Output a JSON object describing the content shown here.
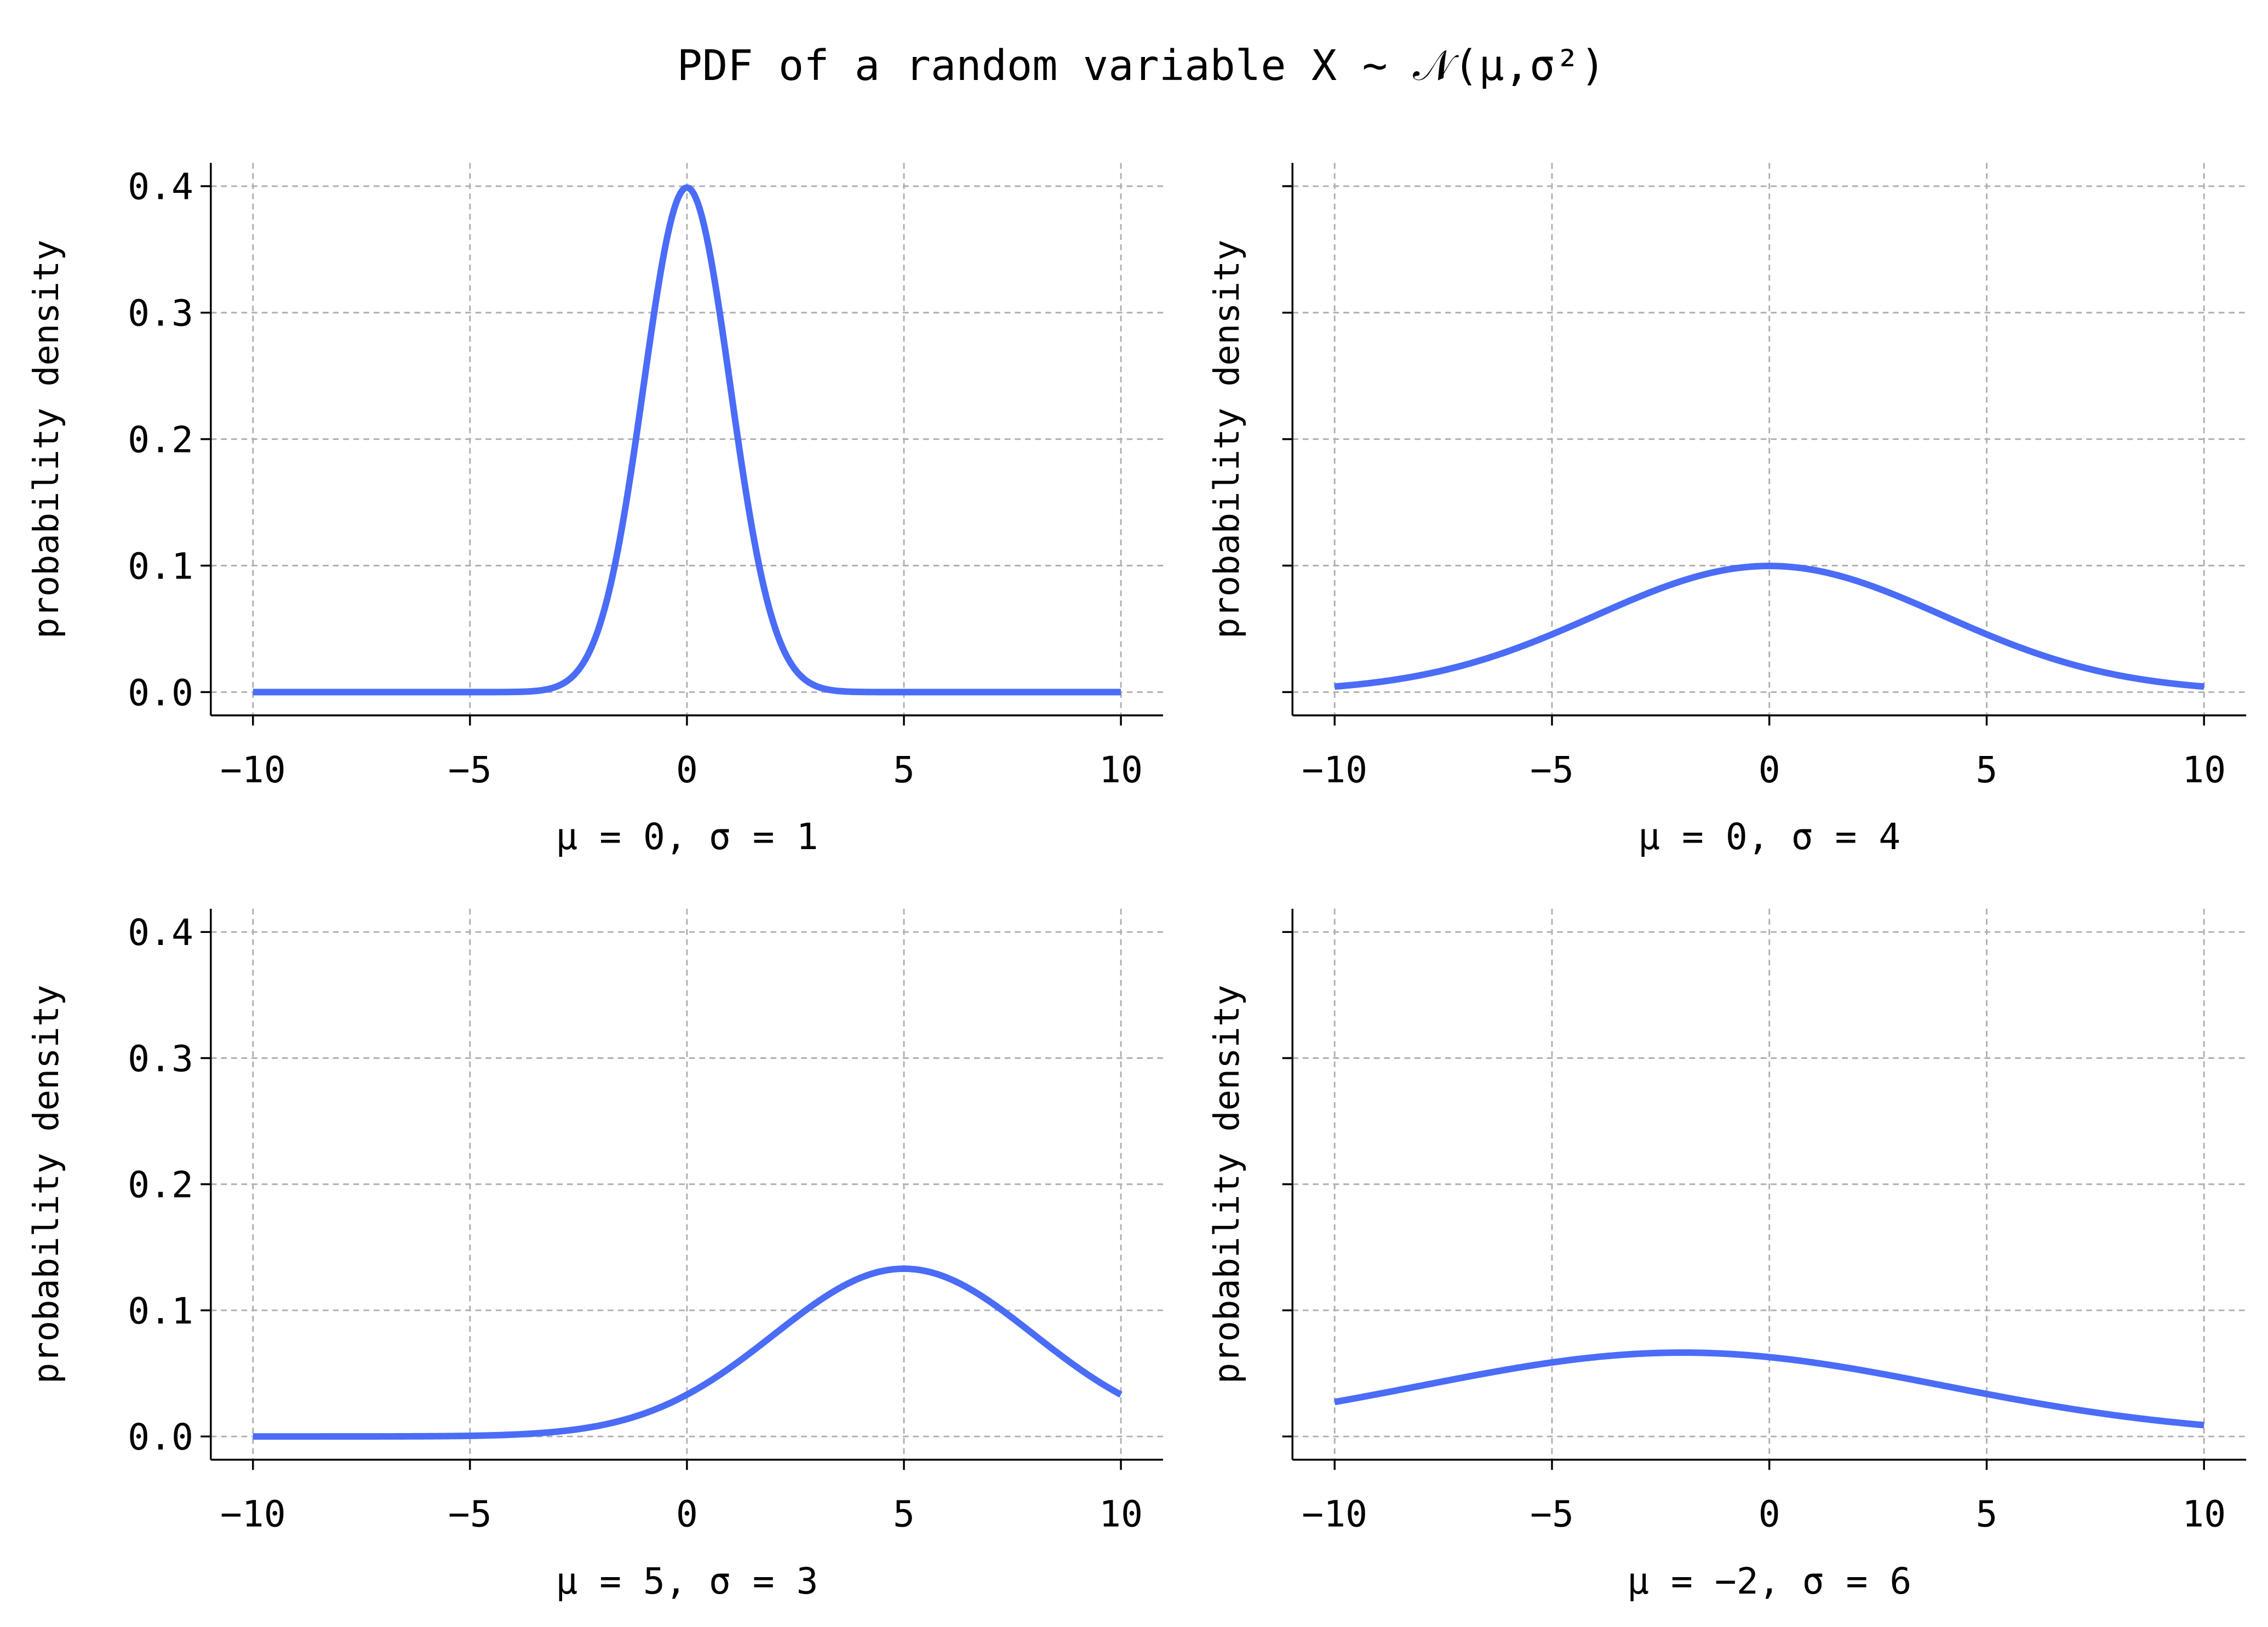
{
  "title": "PDF of a random variable X ∼ 𝒩(μ,σ²)",
  "line_color": "#4a6cf7",
  "chart_data": [
    {
      "type": "line",
      "mu": 0,
      "sigma": 1,
      "xlabel": "μ = 0,  σ = 1",
      "ylabel": "probability density",
      "xlim": [
        -11,
        11
      ],
      "ylim": [
        -0.02,
        0.42
      ],
      "x_range": [
        -10,
        10
      ],
      "xticks": [
        -10,
        -5,
        0,
        5,
        10
      ],
      "xtick_labels": [
        "−10",
        "−5",
        "0",
        "5",
        "10"
      ],
      "yticks": [
        0,
        0.1,
        0.2,
        0.3,
        0.4
      ],
      "ytick_labels": [
        "0.0",
        "0.1",
        "0.2",
        "0.3",
        "0.4"
      ],
      "grid": true
    },
    {
      "type": "line",
      "mu": 0,
      "sigma": 4,
      "xlabel": "μ = 0,  σ = 4",
      "ylabel": "probability density",
      "xlim": [
        -11,
        11
      ],
      "ylim": [
        -0.02,
        0.42
      ],
      "x_range": [
        -10,
        10
      ],
      "xticks": [
        -10,
        -5,
        0,
        5,
        10
      ],
      "xtick_labels": [
        "−10",
        "−5",
        "0",
        "5",
        "10"
      ],
      "yticks": [
        0,
        0.1,
        0.2,
        0.3,
        0.4
      ],
      "ytick_labels": [],
      "grid": true
    },
    {
      "type": "line",
      "mu": 5,
      "sigma": 3,
      "xlabel": "μ = 5,  σ = 3",
      "ylabel": "probability density",
      "xlim": [
        -11,
        11
      ],
      "ylim": [
        -0.02,
        0.42
      ],
      "x_range": [
        -10,
        10
      ],
      "xticks": [
        -10,
        -5,
        0,
        5,
        10
      ],
      "xtick_labels": [
        "−10",
        "−5",
        "0",
        "5",
        "10"
      ],
      "yticks": [
        0,
        0.1,
        0.2,
        0.3,
        0.4
      ],
      "ytick_labels": [
        "0.0",
        "0.1",
        "0.2",
        "0.3",
        "0.4"
      ],
      "grid": true
    },
    {
      "type": "line",
      "mu": -2,
      "sigma": 6,
      "xlabel": "μ = −2,  σ = 6",
      "ylabel": "probability density",
      "xlim": [
        -11,
        11
      ],
      "ylim": [
        -0.02,
        0.42
      ],
      "x_range": [
        -10,
        10
      ],
      "xticks": [
        -10,
        -5,
        0,
        5,
        10
      ],
      "xtick_labels": [
        "−10",
        "−5",
        "0",
        "5",
        "10"
      ],
      "yticks": [
        0,
        0.1,
        0.2,
        0.3,
        0.4
      ],
      "ytick_labels": [],
      "grid": true
    }
  ]
}
